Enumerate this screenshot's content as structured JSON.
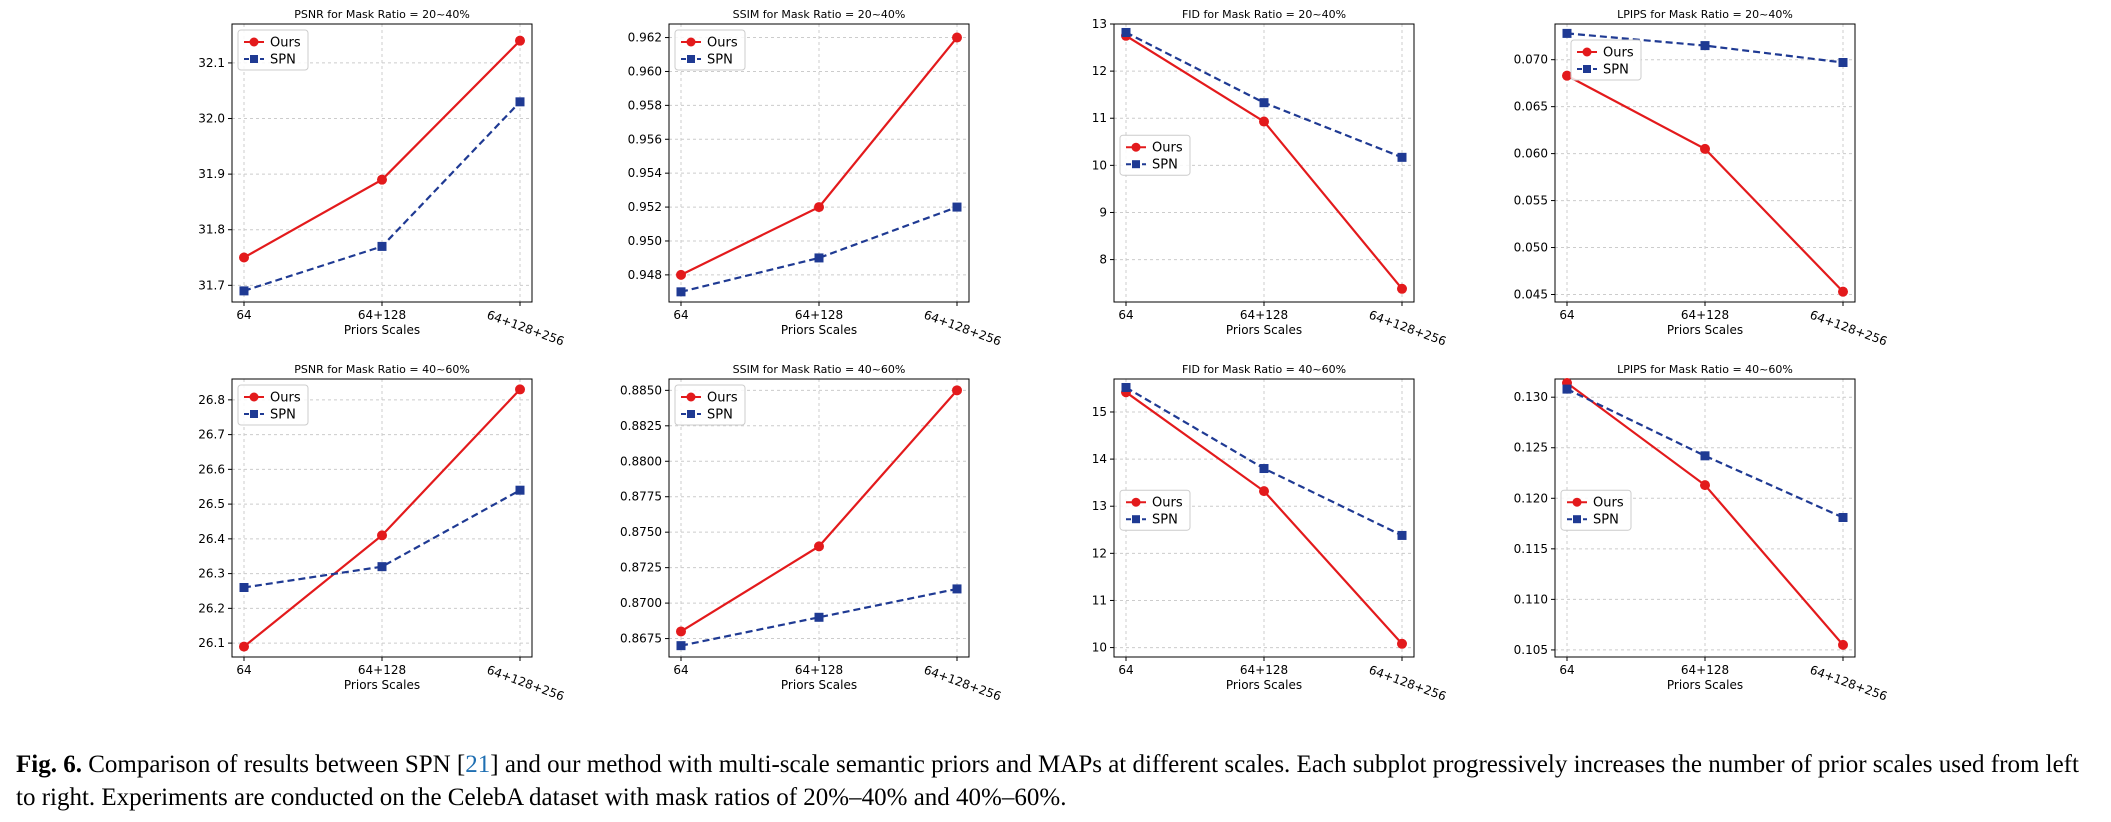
{
  "colors": {
    "ours": "#e31a1c",
    "spn": "#1f3a93"
  },
  "caption": {
    "label": "Fig. 6.",
    "text_before_ref": "Comparison of results between SPN [",
    "ref": "21",
    "text_after_ref": "] and our method with multi-scale semantic priors and MAPs at different scales. Each subplot progressively increases the number of prior scales used from left to right. Experiments are conducted on the CelebA dataset with mask ratios of 20%–40% and 40%–60%."
  },
  "chart_data": [
    {
      "type": "line",
      "title": "PSNR for Mask Ratio = 20~40%",
      "xlabel": "Priors Scales",
      "ylabel": "",
      "categories": [
        "64",
        "64+128",
        "64+128+256"
      ],
      "ylim": [
        31.67,
        32.17
      ],
      "yticks": [
        "31.7",
        "31.8",
        "31.9",
        "32.0",
        "32.1"
      ],
      "legend": "upper-left",
      "grid": true,
      "series": [
        {
          "name": "Ours",
          "values": [
            31.75,
            31.89,
            32.14
          ]
        },
        {
          "name": "SPN",
          "values": [
            31.69,
            31.77,
            32.03
          ]
        }
      ]
    },
    {
      "type": "line",
      "title": "SSIM for Mask Ratio = 20~40%",
      "xlabel": "Priors Scales",
      "ylabel": "",
      "categories": [
        "64",
        "64+128",
        "64+128+256"
      ],
      "ylim": [
        0.9464,
        0.9628
      ],
      "yticks": [
        "0.948",
        "0.950",
        "0.952",
        "0.954",
        "0.956",
        "0.958",
        "0.960",
        "0.962"
      ],
      "legend": "upper-left",
      "grid": true,
      "series": [
        {
          "name": "Ours",
          "values": [
            0.948,
            0.952,
            0.962
          ]
        },
        {
          "name": "SPN",
          "values": [
            0.947,
            0.949,
            0.952
          ]
        }
      ]
    },
    {
      "type": "line",
      "title": "FID for Mask Ratio = 20~40%",
      "xlabel": "Priors Scales",
      "ylabel": "",
      "categories": [
        "64",
        "64+128",
        "64+128+256"
      ],
      "ylim": [
        7.1,
        13.0
      ],
      "yticks": [
        "8",
        "9",
        "10",
        "11",
        "12",
        "13"
      ],
      "legend": "center-left",
      "grid": true,
      "series": [
        {
          "name": "Ours",
          "values": [
            12.75,
            10.93,
            7.38
          ]
        },
        {
          "name": "SPN",
          "values": [
            12.82,
            11.33,
            10.17
          ]
        }
      ]
    },
    {
      "type": "line",
      "title": "LPIPS for Mask Ratio = 20~40%",
      "xlabel": "Priors Scales",
      "ylabel": "",
      "categories": [
        "64",
        "64+128",
        "64+128+256"
      ],
      "ylim": [
        0.0442,
        0.0738
      ],
      "yticks": [
        "0.045",
        "0.050",
        "0.055",
        "0.060",
        "0.065",
        "0.070"
      ],
      "legend": "upper-center-left",
      "grid": true,
      "series": [
        {
          "name": "Ours",
          "values": [
            0.0683,
            0.0605,
            0.0453
          ]
        },
        {
          "name": "SPN",
          "values": [
            0.0728,
            0.0715,
            0.0697
          ]
        }
      ]
    },
    {
      "type": "line",
      "title": "PSNR for Mask Ratio = 40~60%",
      "xlabel": "Priors Scales",
      "ylabel": "",
      "categories": [
        "64",
        "64+128",
        "64+128+256"
      ],
      "ylim": [
        26.06,
        26.86
      ],
      "yticks": [
        "26.1",
        "26.2",
        "26.3",
        "26.4",
        "26.5",
        "26.6",
        "26.7",
        "26.8"
      ],
      "legend": "upper-left",
      "grid": true,
      "series": [
        {
          "name": "Ours",
          "values": [
            26.09,
            26.41,
            26.83
          ]
        },
        {
          "name": "SPN",
          "values": [
            26.26,
            26.32,
            26.54
          ]
        }
      ]
    },
    {
      "type": "line",
      "title": "SSIM for Mask Ratio = 40~60%",
      "xlabel": "Priors Scales",
      "ylabel": "",
      "categories": [
        "64",
        "64+128",
        "64+128+256"
      ],
      "ylim": [
        0.8662,
        0.8858
      ],
      "yticks": [
        "0.8675",
        "0.8700",
        "0.8725",
        "0.8750",
        "0.8775",
        "0.8800",
        "0.8825",
        "0.8850"
      ],
      "legend": "upper-left",
      "grid": true,
      "series": [
        {
          "name": "Ours",
          "values": [
            0.868,
            0.874,
            0.885
          ]
        },
        {
          "name": "SPN",
          "values": [
            0.867,
            0.869,
            0.871
          ]
        }
      ]
    },
    {
      "type": "line",
      "title": "FID for Mask Ratio = 40~60%",
      "xlabel": "Priors Scales",
      "ylabel": "",
      "categories": [
        "64",
        "64+128",
        "64+128+256"
      ],
      "ylim": [
        9.8,
        15.7
      ],
      "yticks": [
        "10",
        "11",
        "12",
        "13",
        "14",
        "15"
      ],
      "legend": "center-left",
      "grid": true,
      "series": [
        {
          "name": "Ours",
          "values": [
            15.42,
            13.32,
            10.08
          ]
        },
        {
          "name": "SPN",
          "values": [
            15.52,
            13.8,
            12.38
          ]
        }
      ]
    },
    {
      "type": "line",
      "title": "LPIPS for Mask Ratio = 40~60%",
      "xlabel": "Priors Scales",
      "ylabel": "",
      "categories": [
        "64",
        "64+128",
        "64+128+256"
      ],
      "ylim": [
        0.1043,
        0.1318
      ],
      "yticks": [
        "0.105",
        "0.110",
        "0.115",
        "0.120",
        "0.125",
        "0.130"
      ],
      "legend": "center-left",
      "grid": true,
      "series": [
        {
          "name": "Ours",
          "values": [
            0.1314,
            0.1213,
            0.1055
          ]
        },
        {
          "name": "SPN",
          "values": [
            0.1308,
            0.1242,
            0.1181
          ]
        }
      ]
    }
  ]
}
